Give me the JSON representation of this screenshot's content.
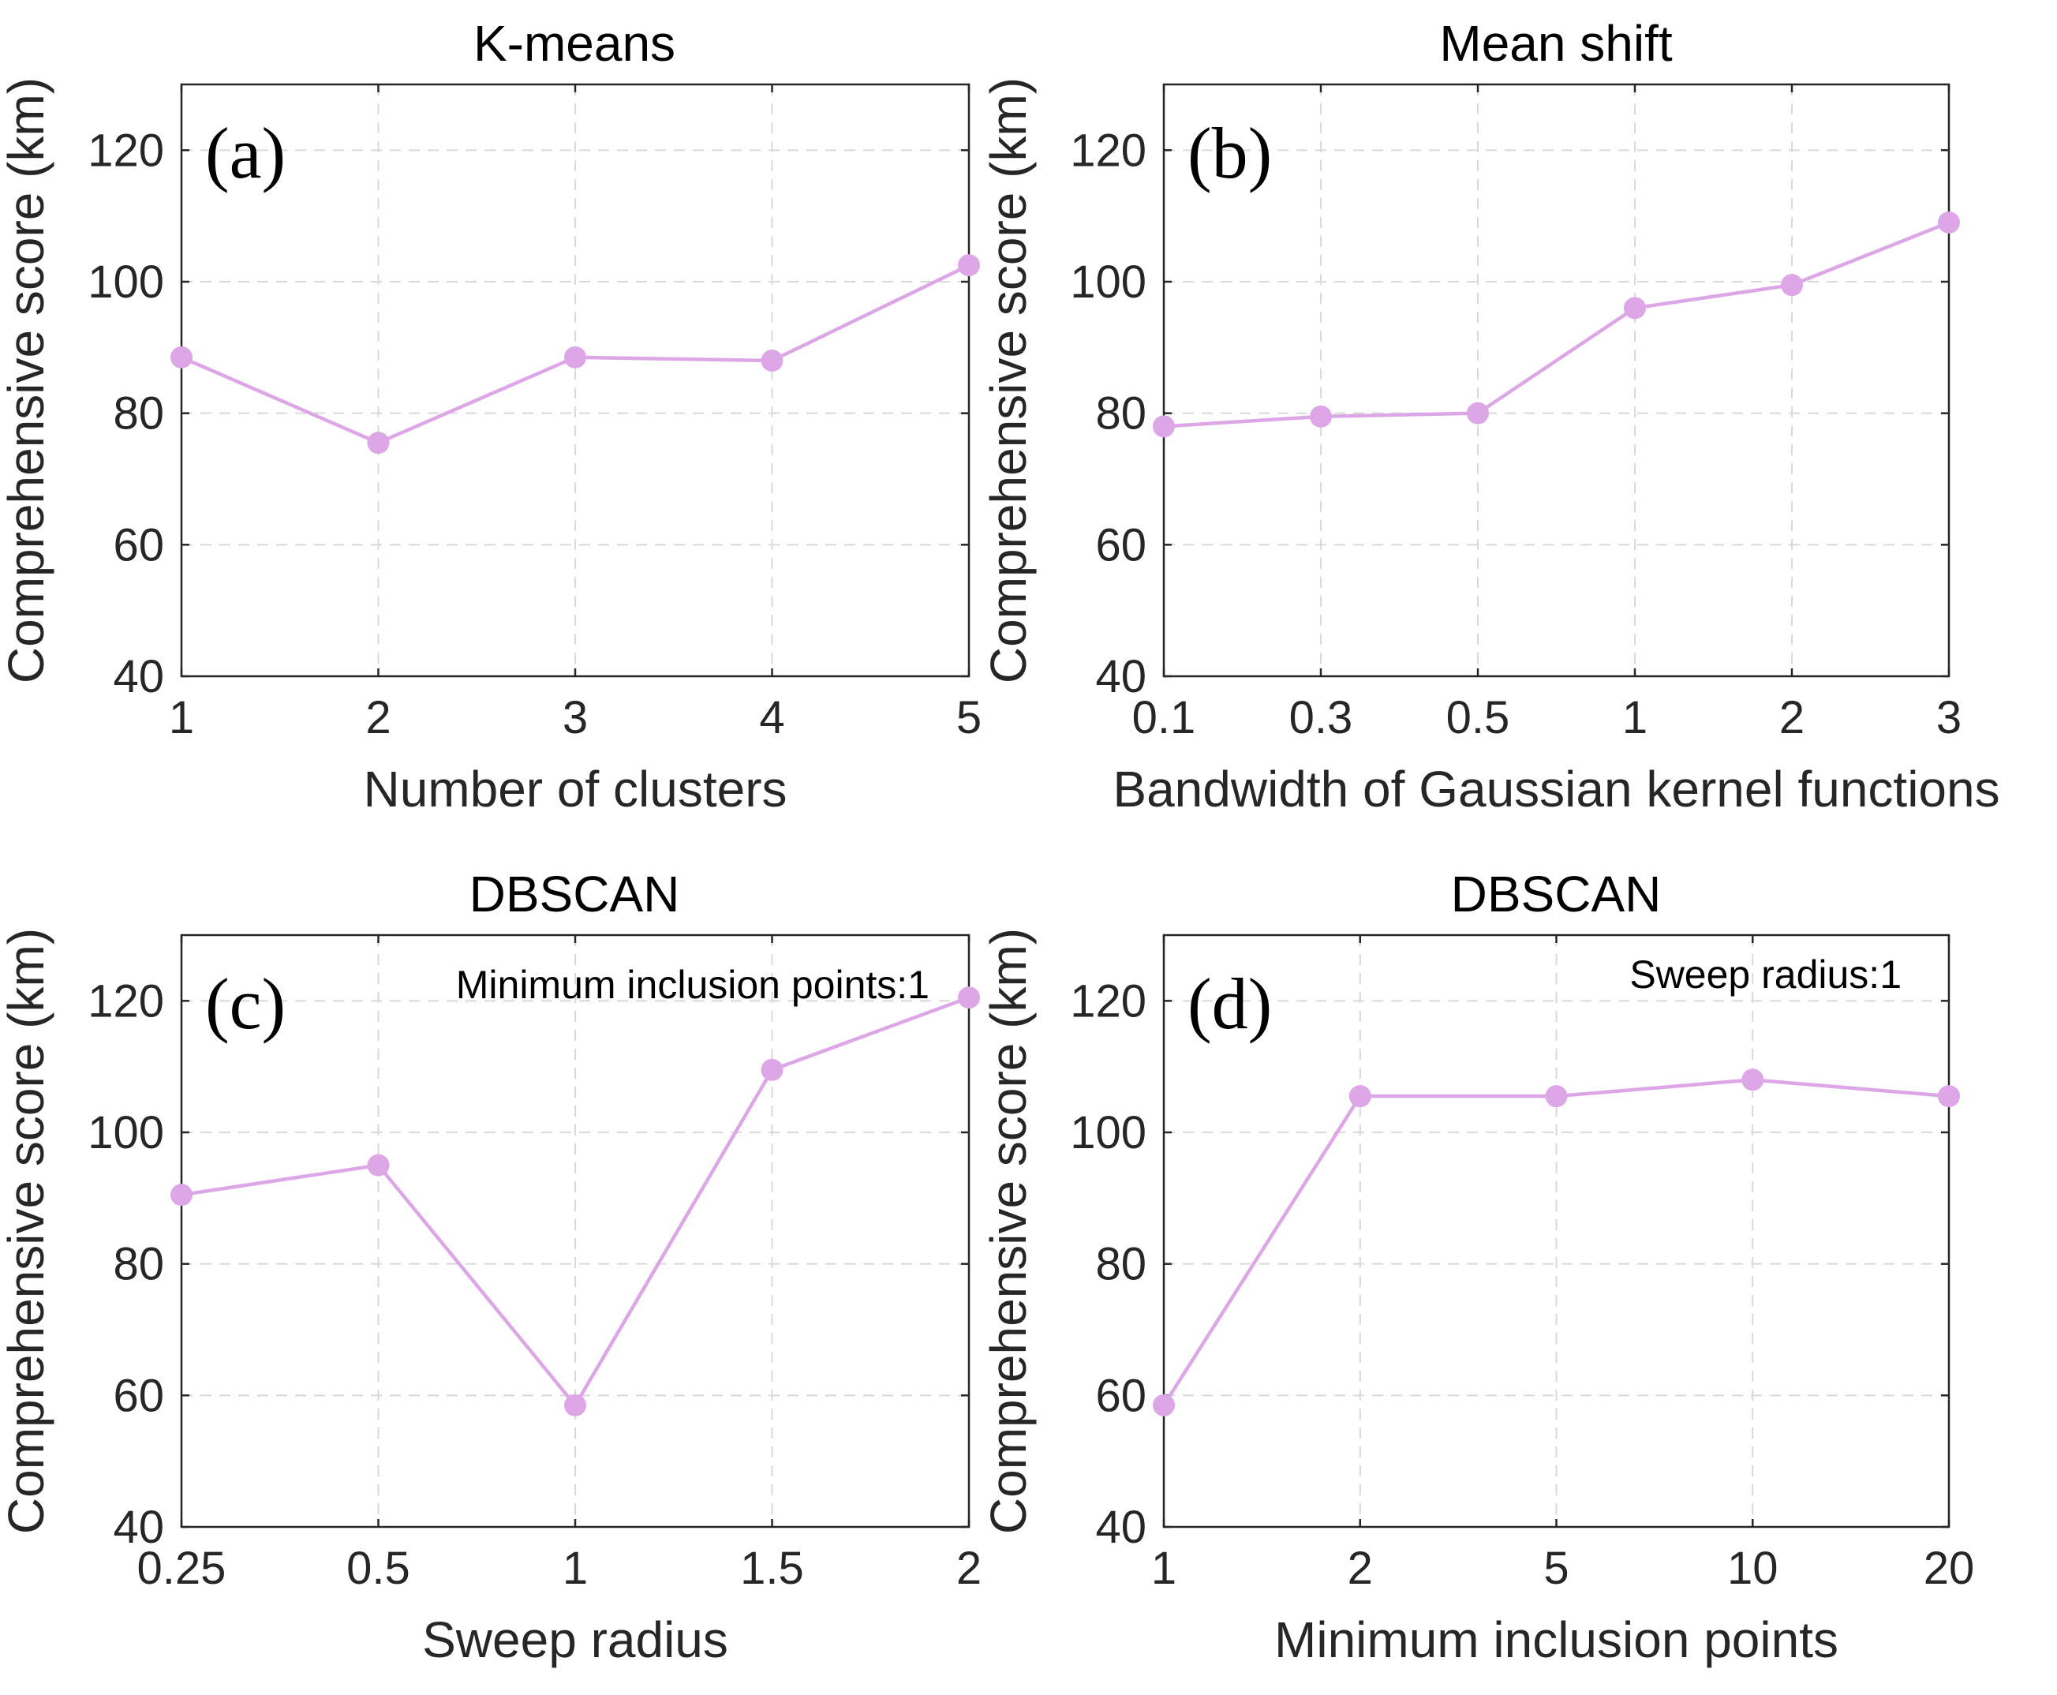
{
  "chart_data": [
    {
      "id": "a",
      "type": "line",
      "title": "K-means",
      "panel_label": "(a)",
      "xlabel": "Number of clusters",
      "ylabel": "Comprehensive score (km)",
      "categories": [
        "1",
        "2",
        "3",
        "4",
        "5"
      ],
      "values": [
        88.5,
        75.5,
        88.5,
        88,
        102.5
      ],
      "ylim": [
        40,
        130
      ],
      "yticks": [
        40,
        60,
        80,
        100,
        120
      ],
      "grid": true,
      "annotation": "",
      "color": "#dda6e6"
    },
    {
      "id": "b",
      "type": "line",
      "title": "Mean shift",
      "panel_label": "(b)",
      "xlabel": "Bandwidth of Gaussian kernel functions",
      "ylabel": "Comprehensive score (km)",
      "categories": [
        "0.1",
        "0.3",
        "0.5",
        "1",
        "2",
        "3"
      ],
      "values": [
        78,
        79.5,
        80,
        96,
        99.5,
        109
      ],
      "ylim": [
        40,
        130
      ],
      "yticks": [
        40,
        60,
        80,
        100,
        120
      ],
      "grid": true,
      "annotation": "",
      "color": "#dda6e6"
    },
    {
      "id": "c",
      "type": "line",
      "title": "DBSCAN",
      "panel_label": "(c)",
      "xlabel": "Sweep radius",
      "ylabel": "Comprehensive score (km)",
      "categories": [
        "0.25",
        "0.5",
        "1",
        "1.5",
        "2"
      ],
      "values": [
        90.5,
        95,
        58.5,
        109.5,
        120.5
      ],
      "ylim": [
        40,
        130
      ],
      "yticks": [
        40,
        60,
        80,
        100,
        120
      ],
      "grid": true,
      "annotation": "Minimum inclusion points:1",
      "color": "#dda6e6"
    },
    {
      "id": "d",
      "type": "line",
      "title": "DBSCAN",
      "panel_label": "(d)",
      "xlabel": "Minimum inclusion points",
      "ylabel": "Comprehensive score (km)",
      "categories": [
        "1",
        "2",
        "5",
        "10",
        "20"
      ],
      "values": [
        58.5,
        105.5,
        105.5,
        108,
        105.5
      ],
      "ylim": [
        40,
        130
      ],
      "yticks": [
        40,
        60,
        80,
        100,
        120
      ],
      "grid": true,
      "annotation": "Sweep radius:1",
      "color": "#dda6e6"
    }
  ]
}
